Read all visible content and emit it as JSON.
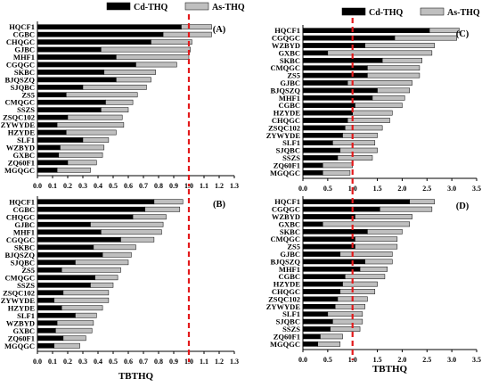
{
  "chart_data": [
    {
      "type": "bar",
      "stacked": true,
      "orientation": "horizontal",
      "panel_label": "(A)",
      "categories": [
        "HQCF1",
        "CGBC",
        "CHQGC",
        "GJBC",
        "MHF1",
        "CGQGC",
        "SKBC",
        "BJQSZQ",
        "SJQBC",
        "ZS5",
        "CMQGC",
        "SSZS",
        "ZSQC102",
        "ZYWYDE",
        "HZYDE",
        "SLF1",
        "WZBYD",
        "GXBC",
        "ZQ60F1",
        "MGQGC"
      ],
      "series": [
        {
          "name": "Cd-THQ",
          "color": "#000000",
          "values": [
            0.95,
            0.83,
            0.75,
            0.42,
            0.52,
            0.65,
            0.44,
            0.52,
            0.3,
            0.19,
            0.45,
            0.42,
            0.2,
            0.13,
            0.19,
            0.3,
            0.15,
            0.14,
            0.2,
            0.13
          ]
        },
        {
          "name": "As-THQ",
          "color": "#bfbfbf",
          "values": [
            0.2,
            0.32,
            0.27,
            0.59,
            0.48,
            0.27,
            0.34,
            0.23,
            0.42,
            0.47,
            0.18,
            0.18,
            0.36,
            0.44,
            0.33,
            0.17,
            0.29,
            0.29,
            0.19,
            0.22
          ]
        }
      ],
      "xlim": [
        0,
        1.3
      ],
      "xticks": [
        "0.0",
        "0.1",
        "0.2",
        "0.3",
        "0.4",
        "0.5",
        "0.6",
        "0.7",
        "0.8",
        "0.9",
        "1.0",
        "1.1",
        "1.2",
        "1.3"
      ],
      "threshold": 1.0,
      "legend": "top-center",
      "xlabel": ""
    },
    {
      "type": "bar",
      "stacked": true,
      "orientation": "horizontal",
      "panel_label": "(B)",
      "categories": [
        "HQCF1",
        "CGBC",
        "CHQGC",
        "GJBC",
        "MHF1",
        "CGQGC",
        "SKBC",
        "BJQSZQ",
        "SJQBC",
        "ZS5",
        "CMQGC",
        "SSZS",
        "ZSQC102",
        "ZYWYDE",
        "HZYDE",
        "SLF1",
        "WZBYD",
        "GXBC",
        "ZQ60F1",
        "MGQGC"
      ],
      "series": [
        {
          "name": "Cd-THQ",
          "color": "#000000",
          "values": [
            0.77,
            0.71,
            0.63,
            0.35,
            0.42,
            0.55,
            0.37,
            0.43,
            0.25,
            0.16,
            0.38,
            0.35,
            0.17,
            0.11,
            0.16,
            0.25,
            0.13,
            0.12,
            0.17,
            0.11
          ]
        },
        {
          "name": "As-THQ",
          "color": "#bfbfbf",
          "values": [
            0.19,
            0.23,
            0.22,
            0.48,
            0.4,
            0.22,
            0.28,
            0.19,
            0.35,
            0.39,
            0.15,
            0.15,
            0.3,
            0.36,
            0.27,
            0.14,
            0.24,
            0.24,
            0.15,
            0.17
          ]
        }
      ],
      "xlim": [
        0,
        1.3
      ],
      "xticks": [
        "0.0",
        "0.1",
        "0.2",
        "0.3",
        "0.4",
        "0.5",
        "0.6",
        "0.7",
        "0.8",
        "0.9",
        "1.0",
        "1.1",
        "1.2",
        "1.3"
      ],
      "threshold": 1.0,
      "xlabel": "TBTHQ"
    },
    {
      "type": "bar",
      "stacked": true,
      "orientation": "horizontal",
      "panel_label": "(C)",
      "categories": [
        "HQCF1",
        "CGQGC",
        "WZBYD",
        "GXBC",
        "SKBC",
        "CMQGC",
        "ZS5",
        "GJBC",
        "BJQSZQ",
        "MHF1",
        "CGBC",
        "HZYDE",
        "CHQGC",
        "ZSQC102",
        "ZYWYDE",
        "SLF1",
        "SJQBC",
        "SSZS",
        "ZQ60F1",
        "MGQGC"
      ],
      "series": [
        {
          "name": "Cd-THQ",
          "color": "#000000",
          "values": [
            2.55,
            1.85,
            1.25,
            0.5,
            1.6,
            1.3,
            1.3,
            0.9,
            1.5,
            1.4,
            1.05,
            1.0,
            0.9,
            0.85,
            0.8,
            0.6,
            0.75,
            0.7,
            0.4,
            0.4
          ]
        },
        {
          "name": "As-THQ",
          "color": "#bfbfbf",
          "values": [
            0.6,
            1.25,
            1.4,
            2.1,
            0.8,
            1.05,
            1.05,
            1.3,
            0.65,
            0.65,
            0.95,
            0.8,
            0.85,
            0.75,
            0.7,
            0.85,
            0.75,
            0.7,
            0.6,
            0.55
          ]
        }
      ],
      "xlim": [
        0,
        3.5
      ],
      "xticks": [
        "0.0",
        "0.5",
        "1.0",
        "1.5",
        "2.0",
        "2.5",
        "3.0",
        "3.5"
      ],
      "threshold": 1.0,
      "legend": "top-center",
      "xlabel": ""
    },
    {
      "type": "bar",
      "stacked": true,
      "orientation": "horizontal",
      "panel_label": "(D)",
      "categories": [
        "HQCF1",
        "CGQGC",
        "WZBYD",
        "GXBC",
        "SKBC",
        "CMQGC",
        "ZS5",
        "GJBC",
        "BJQSZQ",
        "MHF1",
        "CGBC",
        "HZYDE",
        "CHQGC",
        "ZSQC102",
        "ZYWYDE",
        "SLF1",
        "SJQBC",
        "SSZS",
        "ZQ60F1",
        "MGQGC"
      ],
      "series": [
        {
          "name": "Cd-THQ",
          "color": "#000000",
          "values": [
            2.15,
            1.55,
            1.05,
            0.4,
            1.3,
            1.05,
            1.05,
            0.75,
            1.25,
            1.15,
            0.85,
            0.8,
            0.75,
            0.7,
            0.65,
            0.5,
            0.6,
            0.55,
            0.35,
            0.3
          ]
        },
        {
          "name": "As-THQ",
          "color": "#bfbfbf",
          "values": [
            0.5,
            1.05,
            1.15,
            1.75,
            0.7,
            0.85,
            0.85,
            1.05,
            0.55,
            0.55,
            0.8,
            0.7,
            0.7,
            0.6,
            0.6,
            0.7,
            0.6,
            0.6,
            0.45,
            0.45
          ]
        }
      ],
      "xlim": [
        0,
        3.5
      ],
      "xticks": [
        "0.0",
        "0.5",
        "1.0",
        "1.5",
        "2.0",
        "2.5",
        "3.0",
        "3.5"
      ],
      "threshold": 1.0,
      "xlabel": "TBTHQ"
    }
  ]
}
